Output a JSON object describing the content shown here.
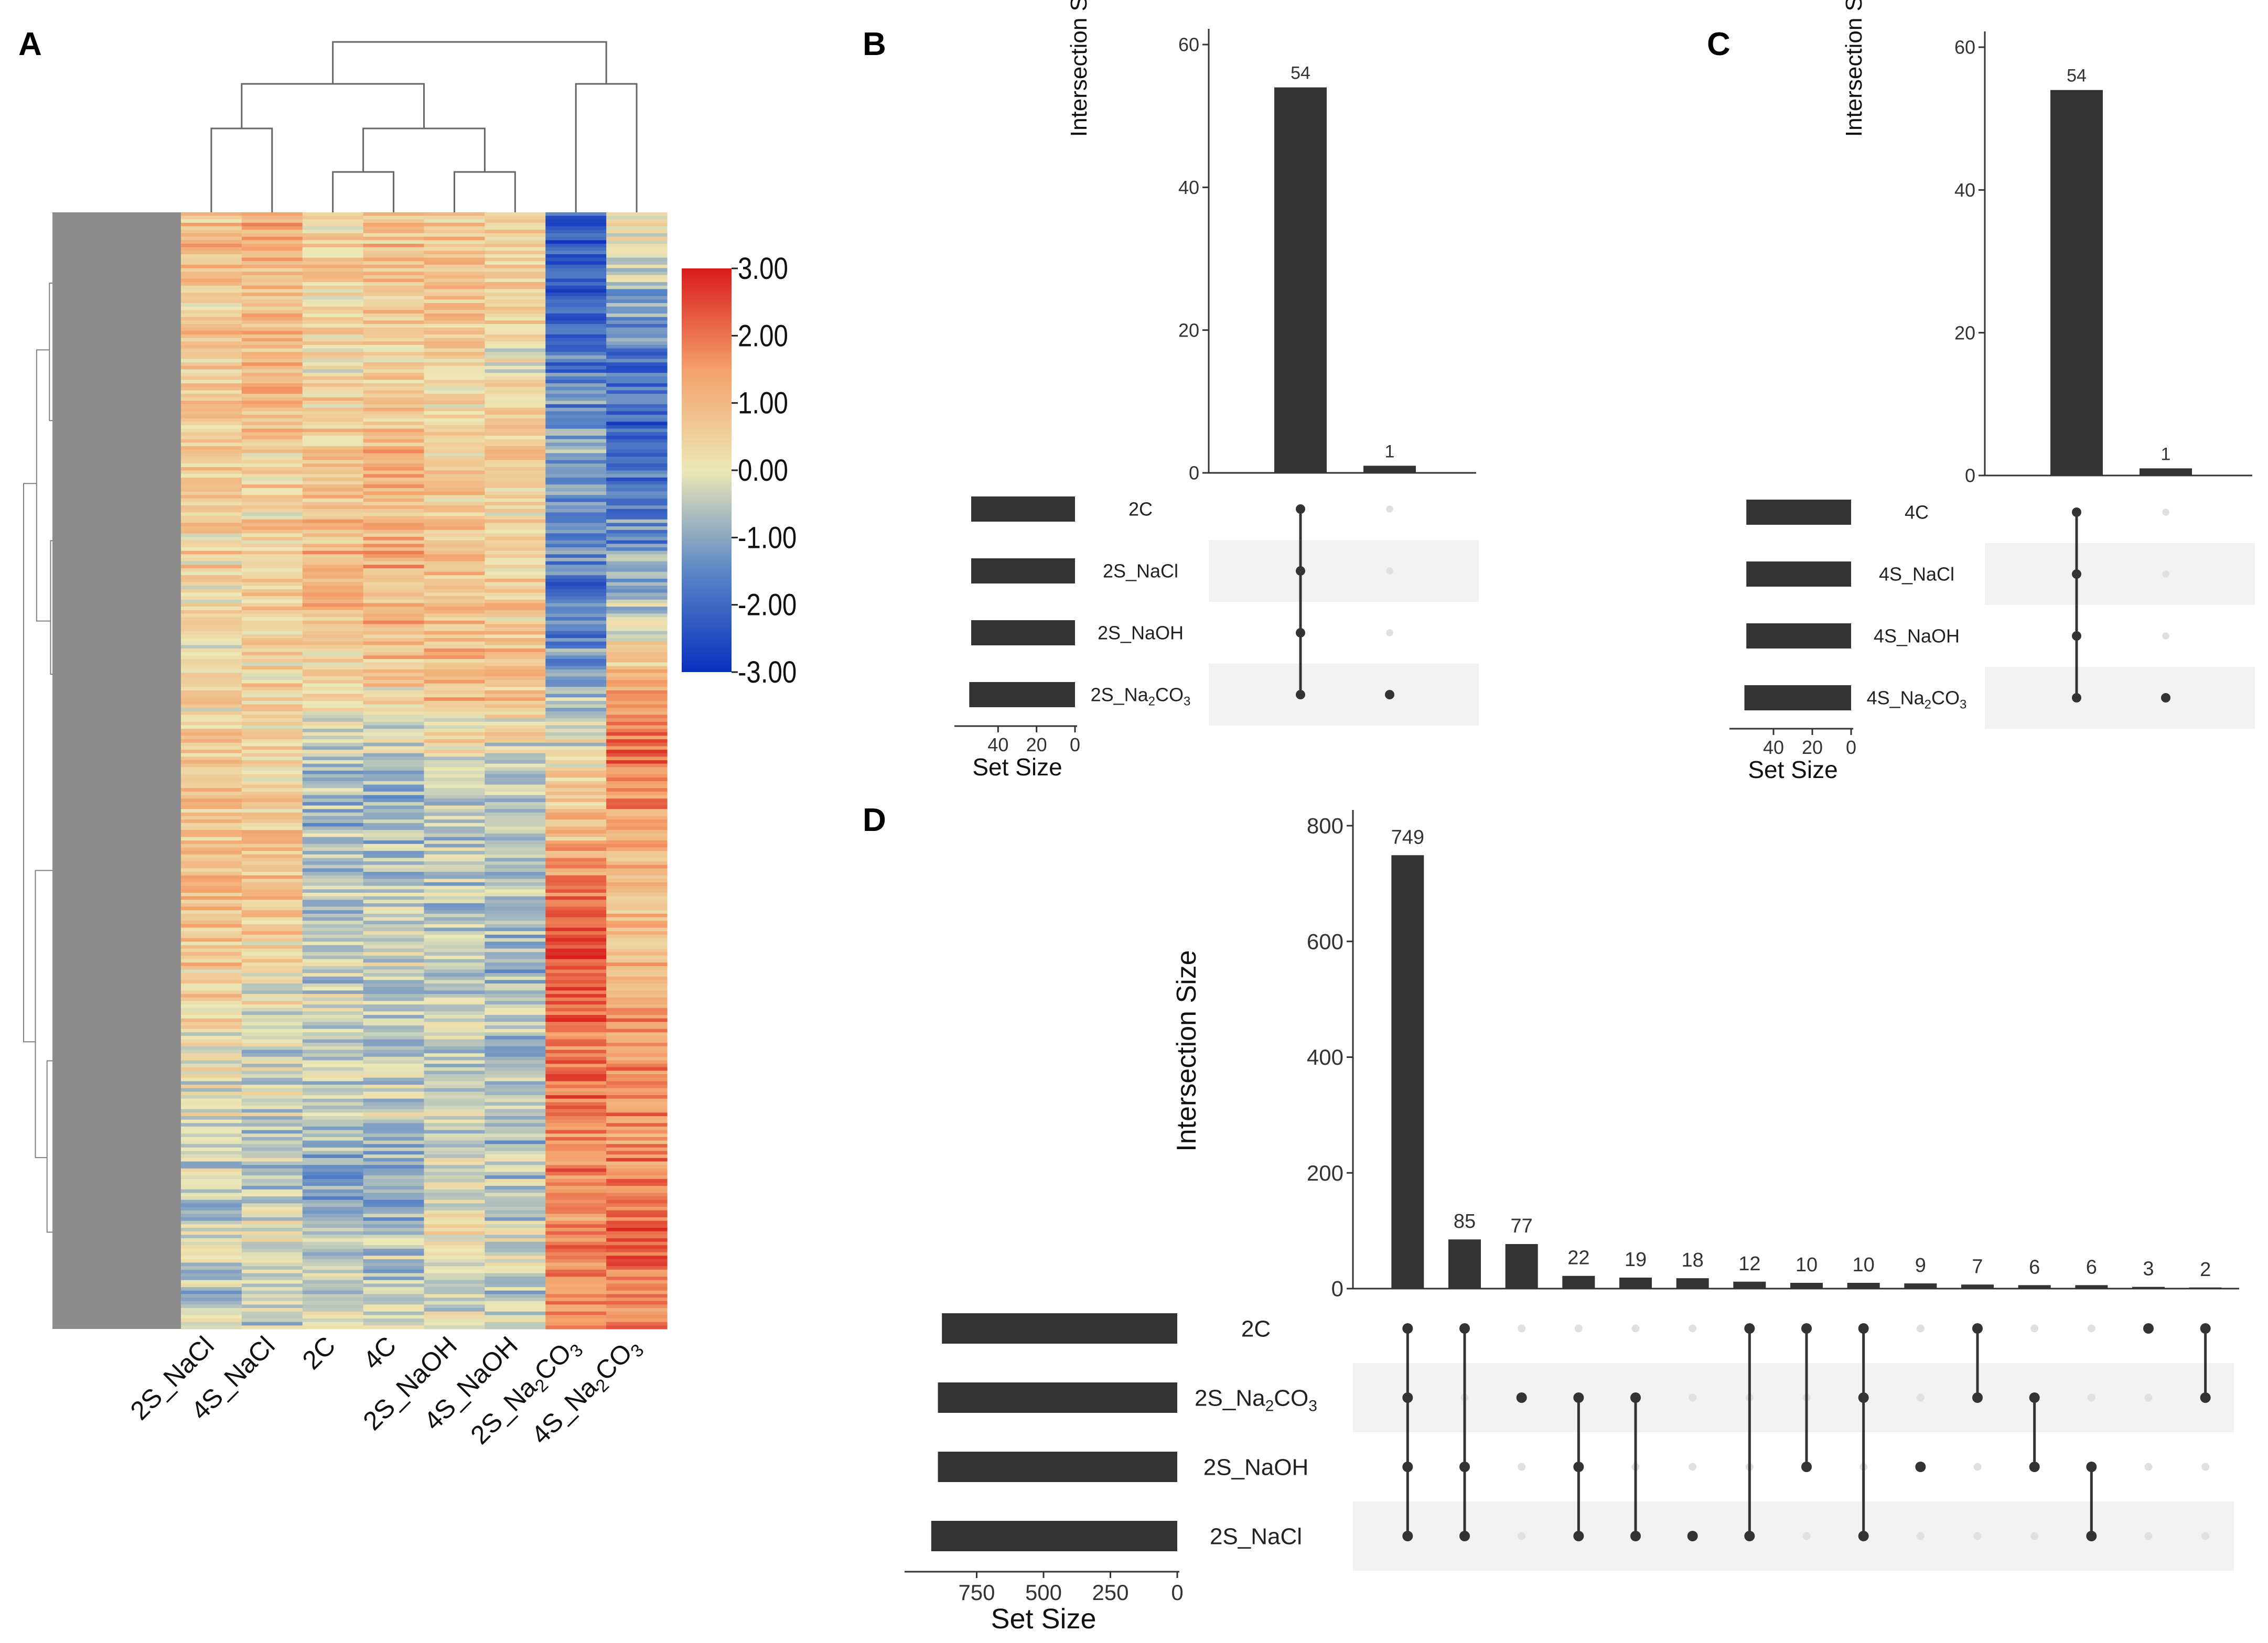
{
  "panel_labels": [
    "A",
    "B",
    "C",
    "D"
  ],
  "chart_data": [
    {
      "panel": "A",
      "type": "heatmap",
      "title": "",
      "columns": [
        "2S_NaCl",
        "4S_NaCl",
        "2C",
        "4C",
        "2S_NaOH",
        "4S_NaOH",
        "2S_Na2CO3",
        "4S_Na2CO3"
      ],
      "column_labels": [
        {
          "main": "2S_NaCl",
          "sub": ""
        },
        {
          "main": "4S_NaCl",
          "sub": ""
        },
        {
          "main": "2C",
          "sub": ""
        },
        {
          "main": "4C",
          "sub": ""
        },
        {
          "main": "2S_NaOH",
          "sub": ""
        },
        {
          "main": "4S_NaOH",
          "sub": ""
        },
        {
          "main": "2S_Na",
          "sub": "2",
          "tail": "CO",
          "sub2": "3"
        },
        {
          "main": "4S_Na",
          "sub": "2",
          "tail": "CO",
          "sub2": "3"
        }
      ],
      "colorscale": {
        "min": -3.0,
        "max": 3.0,
        "colors": [
          "#0a2fbf",
          "#5b86c6",
          "#ece8b6",
          "#f4a06a",
          "#d81b1b"
        ],
        "tick_labels": [
          "3.00",
          "2.00",
          "1.00",
          "0.00",
          "-1.00",
          "-2.00",
          "-3.00"
        ]
      },
      "row_blocks": [
        [
          0.9,
          1.1,
          0.3,
          0.8,
          0.6,
          0.4,
          -2.4,
          0.2
        ],
        [
          0.6,
          0.9,
          0.5,
          0.7,
          1.0,
          0.5,
          -2.0,
          -0.8
        ],
        [
          0.7,
          1.3,
          0.4,
          0.6,
          0.3,
          0.2,
          -1.6,
          -1.9
        ],
        [
          0.4,
          0.5,
          0.6,
          0.9,
          0.4,
          0.6,
          -1.2,
          -2.2
        ],
        [
          0.5,
          0.4,
          0.9,
          1.1,
          0.7,
          0.3,
          -1.5,
          -1.4
        ],
        [
          0.3,
          0.6,
          1.0,
          1.2,
          0.8,
          0.7,
          -1.9,
          -0.6
        ],
        [
          0.2,
          0.3,
          0.2,
          0.4,
          0.9,
          0.8,
          -0.9,
          1.6
        ],
        [
          0.6,
          0.5,
          -0.6,
          -0.9,
          -0.3,
          -0.5,
          0.5,
          2.1
        ],
        [
          1.0,
          0.9,
          -0.8,
          -0.7,
          -0.6,
          -0.4,
          1.2,
          1.0
        ],
        [
          0.8,
          0.6,
          -0.5,
          -0.4,
          -0.7,
          -0.9,
          2.4,
          0.9
        ],
        [
          0.3,
          -0.2,
          -0.3,
          -0.5,
          -0.2,
          -0.6,
          2.2,
          1.4
        ],
        [
          -0.2,
          -0.3,
          -0.6,
          -0.4,
          -0.5,
          -0.6,
          2.0,
          1.6
        ],
        [
          -0.4,
          -0.5,
          -0.9,
          -0.8,
          -0.1,
          -0.5,
          1.8,
          1.9
        ],
        [
          -0.3,
          -0.2,
          -0.5,
          -0.6,
          0.1,
          -0.3,
          1.7,
          2.0
        ],
        [
          -0.5,
          -0.4,
          -0.2,
          -0.3,
          -0.4,
          -0.5,
          1.6,
          1.8
        ]
      ]
    },
    {
      "panel": "B",
      "type": "upset",
      "ylabel": "Intersection Size",
      "xlabel": "Set Size",
      "ylim": [
        0,
        60
      ],
      "yticks": [
        0,
        20,
        40,
        60
      ],
      "sets": [
        {
          "name": "2C",
          "sub": "",
          "tail": "",
          "size": 54
        },
        {
          "name": "2S_NaCl",
          "sub": "",
          "tail": "",
          "size": 54
        },
        {
          "name": "2S_NaOH",
          "sub": "",
          "tail": "",
          "size": 54
        },
        {
          "name": "2S_Na",
          "sub": "2",
          "tail": "CO",
          "sub2": "3",
          "size": 55
        }
      ],
      "set_size_max": 60,
      "set_size_ticks": [
        40,
        20,
        0
      ],
      "intersections": [
        {
          "value": 54,
          "label": "54",
          "members": [
            0,
            1,
            2,
            3
          ]
        },
        {
          "value": 1,
          "label": "1",
          "members": [
            3
          ]
        }
      ]
    },
    {
      "panel": "C",
      "type": "upset",
      "ylabel": "Intersection Size",
      "xlabel": "Set Size",
      "ylim": [
        0,
        60
      ],
      "yticks": [
        0,
        20,
        40,
        60
      ],
      "sets": [
        {
          "name": "4C",
          "sub": "",
          "tail": "",
          "size": 54
        },
        {
          "name": "4S_NaCl",
          "sub": "",
          "tail": "",
          "size": 54
        },
        {
          "name": "4S_NaOH",
          "sub": "",
          "tail": "",
          "size": 54
        },
        {
          "name": "4S_Na",
          "sub": "2",
          "tail": "CO",
          "sub2": "3",
          "size": 55
        }
      ],
      "set_size_max": 60,
      "set_size_ticks": [
        40,
        20,
        0
      ],
      "intersections": [
        {
          "value": 54,
          "label": "54",
          "members": [
            0,
            1,
            2,
            3
          ]
        },
        {
          "value": 1,
          "label": "1",
          "members": [
            3
          ]
        }
      ]
    },
    {
      "panel": "D",
      "type": "upset",
      "ylabel": "Intersection Size",
      "xlabel": "Set Size",
      "ylim": [
        0,
        800
      ],
      "yticks": [
        0,
        200,
        400,
        600,
        800
      ],
      "sets": [
        {
          "name": "2C",
          "sub": "",
          "tail": "",
          "size": 880
        },
        {
          "name": "2S_Na",
          "sub": "2",
          "tail": "CO",
          "sub2": "3",
          "size": 895
        },
        {
          "name": "2S_NaOH",
          "sub": "",
          "tail": "",
          "size": 895
        },
        {
          "name": "2S_NaCl",
          "sub": "",
          "tail": "",
          "size": 920
        }
      ],
      "set_size_max": 1000,
      "set_size_ticks": [
        750,
        500,
        250,
        0
      ],
      "intersections": [
        {
          "value": 749,
          "label": "749",
          "members": [
            0,
            1,
            2,
            3
          ]
        },
        {
          "value": 85,
          "label": "85",
          "members": [
            0,
            2,
            3
          ]
        },
        {
          "value": 77,
          "label": "77",
          "members": [
            1
          ]
        },
        {
          "value": 22,
          "label": "22",
          "members": [
            1,
            2,
            3
          ]
        },
        {
          "value": 19,
          "label": "19",
          "members": [
            1,
            3
          ]
        },
        {
          "value": 18,
          "label": "18",
          "members": [
            3
          ]
        },
        {
          "value": 12,
          "label": "12",
          "members": [
            0,
            3
          ]
        },
        {
          "value": 10,
          "label": "10",
          "members": [
            0,
            2
          ]
        },
        {
          "value": 10,
          "label": "10",
          "members": [
            0,
            1,
            3
          ]
        },
        {
          "value": 9,
          "label": "9",
          "members": [
            2
          ]
        },
        {
          "value": 7,
          "label": "7",
          "members": [
            0,
            1
          ]
        },
        {
          "value": 6,
          "label": "6",
          "members": [
            1,
            2
          ]
        },
        {
          "value": 6,
          "label": "6",
          "members": [
            2,
            3
          ]
        },
        {
          "value": 3,
          "label": "3",
          "members": [
            0
          ]
        },
        {
          "value": 2,
          "label": "2",
          "members": [
            0,
            1
          ]
        }
      ]
    }
  ]
}
